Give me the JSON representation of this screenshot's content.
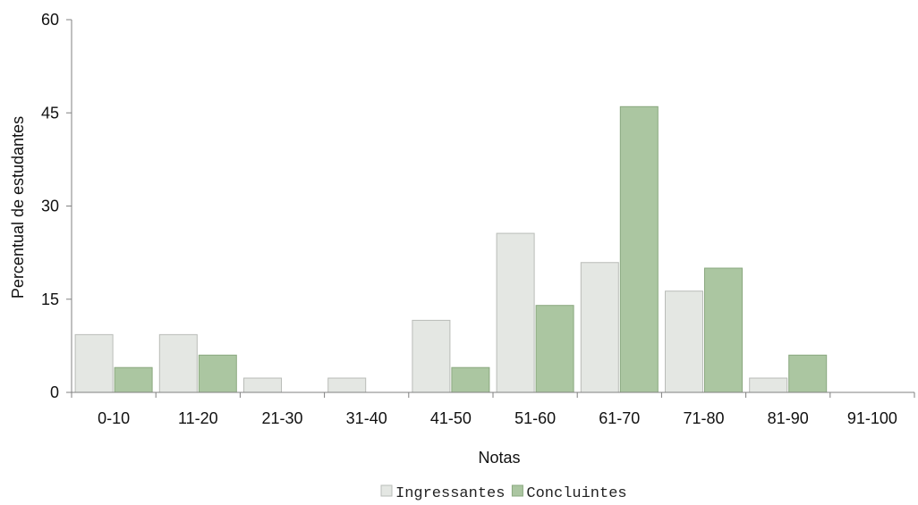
{
  "chart_data": {
    "type": "bar",
    "title": "",
    "xlabel": "Notas",
    "ylabel": "Percentual de estudantes",
    "categories": [
      "0-10",
      "11-20",
      "21-30",
      "31-40",
      "41-50",
      "51-60",
      "61-70",
      "71-80",
      "81-90",
      "91-100"
    ],
    "ylim": [
      0,
      60
    ],
    "yticks": [
      0,
      15,
      30,
      45,
      60
    ],
    "grid": false,
    "legend_position": "bottom",
    "series": [
      {
        "name": "Ingressantes",
        "color": "#e4e7e3",
        "stroke": "#b9bcb8",
        "values": [
          9.3,
          9.3,
          2.3,
          2.3,
          11.6,
          25.6,
          20.9,
          16.3,
          2.3,
          0
        ]
      },
      {
        "name": "Concluintes",
        "color": "#abc6a1",
        "stroke": "#8aa87f",
        "values": [
          4.0,
          6.0,
          0,
          0,
          4.0,
          14.0,
          46.0,
          20.0,
          6.0,
          0
        ]
      }
    ]
  }
}
